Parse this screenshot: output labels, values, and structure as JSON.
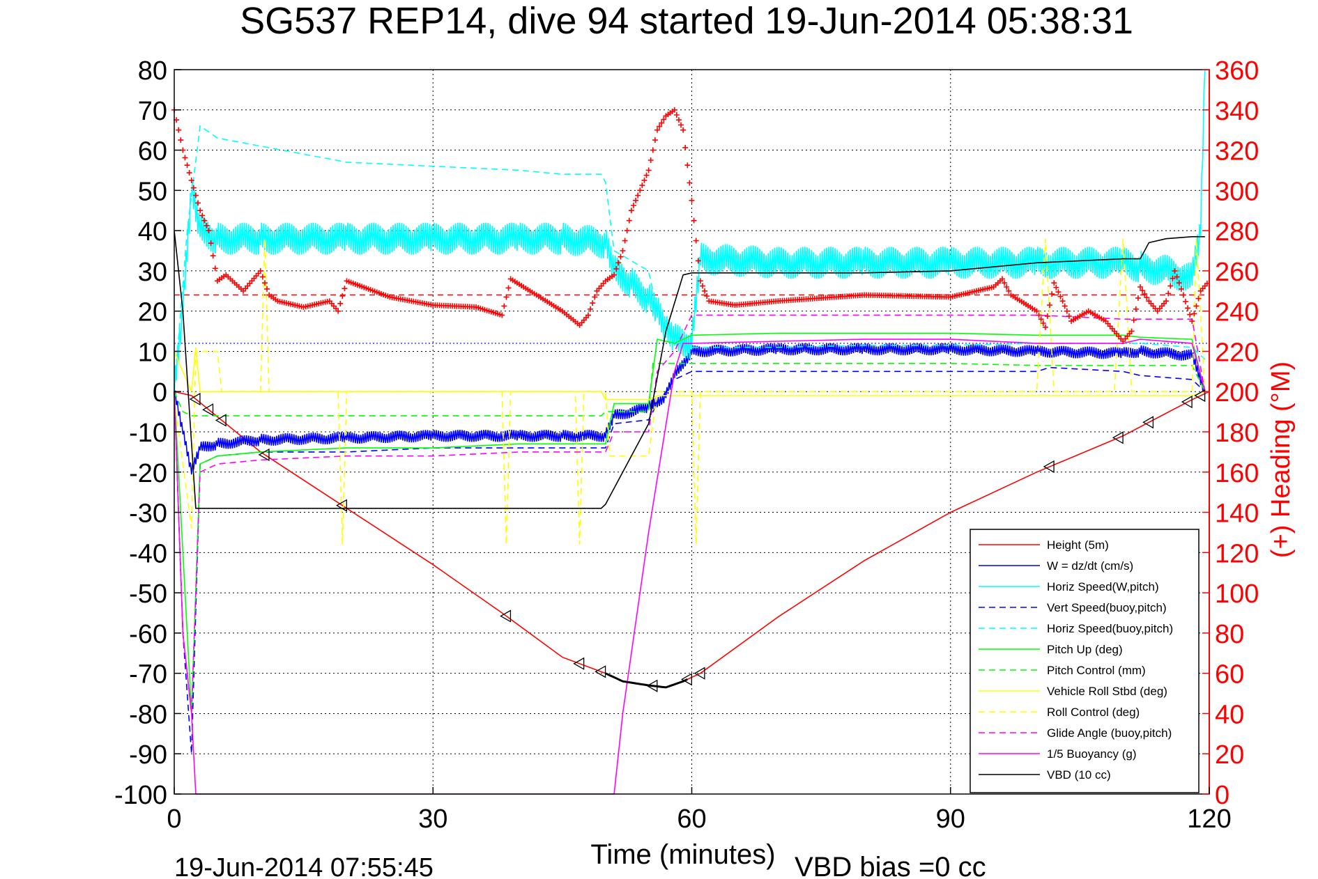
{
  "page": {
    "title": "SG537 REP14, dive 94 started 19-Jun-2014 05:38:31",
    "footer_left": "19-Jun-2014 07:55:45",
    "footer_right": "VBD bias =0 cc"
  },
  "colors": {
    "height": "#ff0000",
    "w": "#0000ff",
    "horiz_w": "#00ffff",
    "vert_buoy": "#0000ff",
    "horiz_buoy": "#00ffff",
    "pitch_up": "#00ff00",
    "pitch_control": "#00ff00",
    "roll": "#ffff00",
    "roll_control": "#ffff00",
    "glide": "#ff00ff",
    "buoyancy": "#ff00ff",
    "vbd": "#000000",
    "heading": "#ff0000",
    "axis": "#000000"
  },
  "chart_data": {
    "type": "line",
    "title": "SG537 REP14, dive 94 started 19-Jun-2014 05:38:31",
    "xlabel": "Time (minutes)",
    "ylabel_right": "(+) Heading (°M)",
    "xlim": [
      0,
      120
    ],
    "ylim": [
      -100,
      80
    ],
    "ylim_right": [
      0,
      360
    ],
    "grid": true,
    "legend_position": "lower-right",
    "x_ticks": [
      "0",
      "30",
      "60",
      "90",
      "120"
    ],
    "y_ticks": [
      "80",
      "70",
      "60",
      "50",
      "40",
      "30",
      "20",
      "10",
      "0",
      "-10",
      "-20",
      "-30",
      "-40",
      "-50",
      "-60",
      "-70",
      "-80",
      "-90",
      "-100"
    ],
    "y_right_ticks": [
      "360",
      "340",
      "320",
      "300",
      "280",
      "260",
      "240",
      "220",
      "200",
      "180",
      "160",
      "140",
      "120",
      "100",
      "80",
      "60",
      "40",
      "20",
      "0"
    ],
    "series": [
      {
        "name": "Height (5m)",
        "key": "height",
        "style": "solid",
        "x": [
          0,
          2,
          10,
          20,
          30,
          38,
          45,
          50,
          52,
          55,
          57,
          59,
          61,
          70,
          80,
          90,
          100,
          110,
          118,
          120
        ],
        "y": [
          0,
          -1,
          -15,
          -29,
          -43,
          -55,
          -66,
          -70,
          -72,
          -73,
          -73.5,
          -72,
          -70,
          -56,
          -42,
          -30,
          -20,
          -11,
          -2,
          0
        ]
      },
      {
        "name": "W = dz/dt (cm/s)",
        "key": "w",
        "style": "solid",
        "x": [
          0,
          1,
          2,
          3,
          5,
          10,
          20,
          30,
          40,
          45,
          50,
          51,
          55,
          57,
          58,
          60,
          70,
          80,
          90,
          100,
          110,
          112,
          118,
          119.5
        ],
        "y": [
          0,
          -10,
          -20,
          -14,
          -13,
          -12,
          -11.5,
          -11,
          -11,
          -11,
          -11,
          -6,
          -4,
          -1,
          4,
          10,
          10.5,
          10.5,
          10.5,
          10,
          9.5,
          10,
          9,
          0
        ]
      },
      {
        "name": "Horiz Speed(W,pitch)",
        "key": "horiz_w",
        "style": "solid",
        "x": [
          0,
          1,
          2,
          3,
          5,
          10,
          20,
          30,
          40,
          45,
          50,
          51,
          53,
          55,
          56,
          57,
          58,
          60,
          61,
          70,
          80,
          90,
          100,
          110,
          112,
          115,
          118,
          119,
          119.5
        ],
        "y": [
          0,
          20,
          50,
          40,
          38,
          38,
          38,
          38,
          38,
          38,
          37,
          30,
          27,
          23,
          20,
          15,
          13,
          12,
          33,
          32,
          32,
          32,
          32,
          32,
          31,
          30,
          28,
          40,
          80
        ]
      },
      {
        "name": "Vert Speed(buoy,pitch)",
        "key": "vert_buoy",
        "style": "dashed",
        "x": [
          0,
          1,
          2,
          3,
          5,
          10,
          20,
          30,
          40,
          45,
          50,
          51,
          55,
          56,
          58,
          60,
          70,
          80,
          90,
          100,
          101.5,
          110,
          112,
          118,
          119.5
        ],
        "y": [
          0,
          -60,
          -90,
          -18,
          -16,
          -15,
          -15,
          -14,
          -14,
          -14,
          -14,
          -8,
          -7,
          -3,
          3,
          5,
          5,
          5,
          5,
          5,
          6,
          5,
          4,
          3,
          0
        ]
      },
      {
        "name": "Horiz Speed(buoy,pitch)",
        "key": "horiz_buoy",
        "style": "dashed",
        "x": [
          0,
          1.5,
          3,
          5,
          10,
          20,
          30,
          40,
          45,
          49.5,
          50,
          51,
          55,
          56,
          58,
          60,
          70,
          80,
          90,
          100,
          110,
          112,
          118,
          119.5
        ],
        "y": [
          0,
          40,
          66,
          63,
          61,
          57,
          56,
          55,
          54,
          54,
          52,
          35,
          30,
          20,
          12,
          11,
          11,
          11.5,
          11.5,
          12,
          12,
          12,
          11,
          8
        ]
      },
      {
        "name": "Pitch Up (deg)",
        "key": "pitch_up",
        "style": "solid",
        "x": [
          0,
          1,
          2,
          3,
          5,
          10,
          20,
          30,
          40,
          45,
          50,
          51,
          55,
          56,
          58,
          60,
          70,
          80,
          90,
          100,
          110,
          112,
          118,
          119.5
        ],
        "y": [
          0,
          -40,
          -80,
          -18,
          -16,
          -15,
          -14,
          -14,
          -13,
          -13,
          -13,
          -3,
          -3,
          13,
          12,
          14,
          14.5,
          14.5,
          14.5,
          14,
          14,
          13.5,
          13,
          0
        ]
      },
      {
        "name": "Pitch Control (mm)",
        "key": "pitch_control",
        "style": "dashed",
        "x": [
          0,
          1,
          2,
          3,
          5,
          10,
          20,
          30,
          40,
          49.5,
          50,
          55,
          55.5,
          60,
          70,
          80,
          90,
          100,
          110,
          118,
          119.5
        ],
        "y": [
          0,
          -5,
          -6,
          -6,
          -6,
          -6,
          -6,
          -6,
          -6,
          -6,
          -5,
          -5,
          7,
          7,
          7,
          7,
          7,
          6.5,
          6.5,
          6.5,
          0
        ]
      },
      {
        "name": "Vehicle Roll Stbd (deg)",
        "key": "roll",
        "style": "solid",
        "x": [
          0,
          1,
          2,
          2.5,
          3,
          10,
          20,
          30,
          40,
          49.5,
          50,
          55,
          56,
          60,
          70,
          80,
          90,
          100,
          110,
          118,
          119.5
        ],
        "y": [
          10,
          5,
          0,
          11,
          0,
          0,
          0,
          0,
          0,
          0,
          -2,
          -2,
          -1,
          -1,
          -1,
          -1,
          -1,
          -1,
          -1,
          -1,
          0
        ]
      },
      {
        "name": "Roll Control (deg)",
        "key": "roll_control",
        "style": "dashed",
        "x": [
          0,
          1,
          2,
          2.5,
          3,
          5,
          5.5,
          10,
          10.5,
          11,
          19,
          19.5,
          20,
          38,
          38.5,
          39,
          46.5,
          47,
          47.5,
          50,
          50.5,
          55,
          56,
          60,
          60.5,
          61,
          100,
          101,
          102,
          109,
          110,
          111,
          115,
          118,
          118.5,
          119.5
        ],
        "y": [
          -2,
          -18,
          -34,
          10,
          10,
          10,
          0,
          0,
          38,
          0,
          0,
          -38,
          0,
          0,
          -38,
          0,
          0,
          -38,
          0,
          0,
          -16,
          -16,
          0,
          0,
          -38,
          0,
          0,
          38,
          0,
          0,
          38,
          0,
          0,
          0,
          38,
          0
        ]
      },
      {
        "name": "Glide Angle (buoy,pitch)",
        "key": "glide",
        "style": "dashed",
        "x": [
          0,
          1,
          2,
          3,
          5,
          10,
          20,
          30,
          40,
          45,
          50,
          51,
          55,
          56,
          58,
          60,
          70,
          80,
          90,
          100,
          110,
          118,
          119.5
        ],
        "y": [
          0,
          -60,
          -80,
          -20,
          -18,
          -17,
          -16,
          -16,
          -15,
          -15,
          -15,
          -10,
          -10,
          5,
          10,
          19,
          19,
          19,
          19,
          19,
          18,
          18,
          0
        ]
      },
      {
        "name": "1/5 Buoyancy (g)",
        "key": "buoyancy",
        "style": "solid",
        "x": [
          0,
          1,
          2,
          2.5,
          5,
          10,
          20,
          30,
          40,
          50,
          51,
          52,
          55,
          58,
          59,
          60,
          70,
          80,
          90,
          100,
          110,
          112,
          118,
          119.5
        ],
        "y": [
          0,
          -60,
          -80,
          -100,
          -100,
          -100,
          -100,
          -100,
          -100,
          -100,
          -100,
          -80,
          -35,
          5,
          12,
          12,
          12.5,
          13,
          13,
          12,
          12,
          13,
          12,
          0
        ]
      },
      {
        "name": "VBD (10 cc)",
        "key": "vbd",
        "style": "solid",
        "x": [
          0,
          1,
          2.5,
          3,
          10,
          20,
          30,
          40,
          49.5,
          50,
          55,
          57,
          59,
          60,
          70,
          80,
          90,
          100,
          110,
          112,
          113,
          115,
          118,
          119.5
        ],
        "y": [
          40,
          20,
          -29,
          -29,
          -29,
          -29,
          -29,
          -29,
          -29,
          -28,
          -8,
          15,
          29,
          29.5,
          29.5,
          29.5,
          30,
          32,
          33,
          33,
          37,
          38,
          38.5,
          38.5
        ]
      }
    ],
    "heading_series": {
      "name": "(+) Heading (°M)",
      "key": "heading",
      "x": [
        0,
        1,
        2,
        3,
        4,
        5,
        6,
        8,
        10,
        11,
        12,
        15,
        18,
        19,
        20,
        25,
        30,
        35,
        38,
        39,
        45,
        47,
        48,
        49,
        50,
        51,
        52,
        53,
        55,
        56,
        57,
        58,
        59,
        60,
        61,
        62,
        65,
        70,
        80,
        90,
        95,
        96,
        97,
        100,
        101,
        102,
        103,
        104,
        106,
        108,
        110,
        111,
        112,
        113,
        114,
        115,
        116,
        117,
        118,
        119,
        120
      ],
      "y": [
        340,
        320,
        305,
        290,
        280,
        255,
        258,
        250,
        260,
        248,
        245,
        242,
        245,
        240,
        255,
        247,
        243,
        242,
        238,
        256,
        240,
        233,
        238,
        250,
        255,
        258,
        270,
        290,
        310,
        330,
        337,
        340,
        330,
        295,
        255,
        245,
        243,
        245,
        248,
        247,
        252,
        256,
        248,
        240,
        232,
        254,
        245,
        235,
        240,
        235,
        225,
        230,
        252,
        245,
        240,
        245,
        260,
        248,
        235,
        250,
        255
      ],
      "mean_dashed": 248
    },
    "annotations": [
      {
        "text": "blue dotted reference",
        "y_left": 12
      },
      {
        "text": "red dashed mean heading",
        "y_right": 248
      }
    ]
  }
}
